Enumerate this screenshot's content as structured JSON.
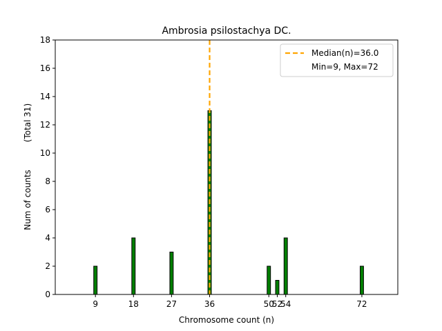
{
  "chart_data": {
    "type": "bar",
    "title": "Ambrosia psilostachya DC.",
    "xlabel": "Chromosome count (n)",
    "ylabel_main": "Num of counts",
    "ylabel_total": "(Total 31)",
    "x": [
      9,
      18,
      27,
      36,
      50,
      52,
      54,
      72
    ],
    "values": [
      2,
      4,
      3,
      13,
      2,
      1,
      4,
      2
    ],
    "xticks": [
      9,
      18,
      27,
      36,
      50,
      52,
      54,
      72
    ],
    "yticks": [
      0,
      2,
      4,
      6,
      8,
      10,
      12,
      14,
      16,
      18
    ],
    "xlim": [
      -0.5,
      80.5
    ],
    "ylim": [
      0,
      18
    ],
    "bar_color": "#008000",
    "bar_edge_color": "#000000",
    "median": 36.0,
    "median_color": "#ffa500",
    "legend": {
      "median_label": "Median(n)=36.0",
      "minmax_label": "Min=9, Max=72",
      "placement": "top-right"
    }
  }
}
